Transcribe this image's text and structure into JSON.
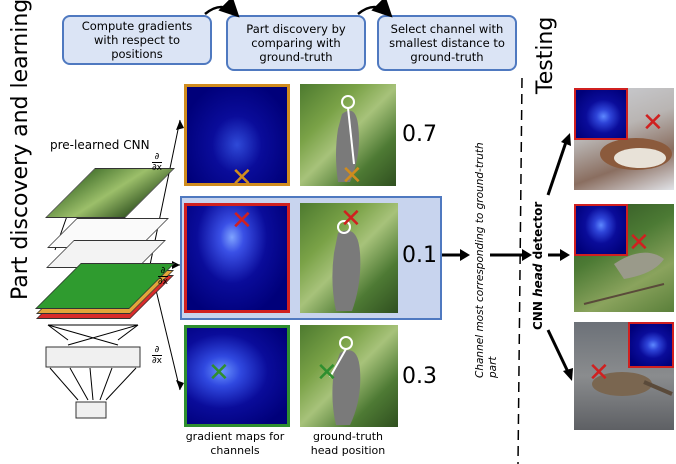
{
  "title_left": "Part discovery and learning",
  "title_testing": "Testing",
  "steps": [
    "Compute gradients with respect to positions",
    "Part discovery by comparing with ground-truth",
    "Select channel with smallest distance to ground-truth"
  ],
  "cnn_label": "pre-learned CNN",
  "partial": "∂",
  "partial_x": "∂x",
  "scores": [
    "0.7",
    "0.1",
    "0.3"
  ],
  "caption_gradient": "gradient maps for channels",
  "caption_gt": "ground-truth head position",
  "vertical_middle": "Channel most corresponding to ground-truth part",
  "detector_prefix": "CNN ",
  "detector_italic": "head",
  "detector_suffix": " detector",
  "colors": {
    "orange": "#d08c1e",
    "red": "#d02020",
    "green": "#2f8f2f",
    "blue_box_fill": "#c8d4ee",
    "blue_box_border": "#4f79c0"
  }
}
